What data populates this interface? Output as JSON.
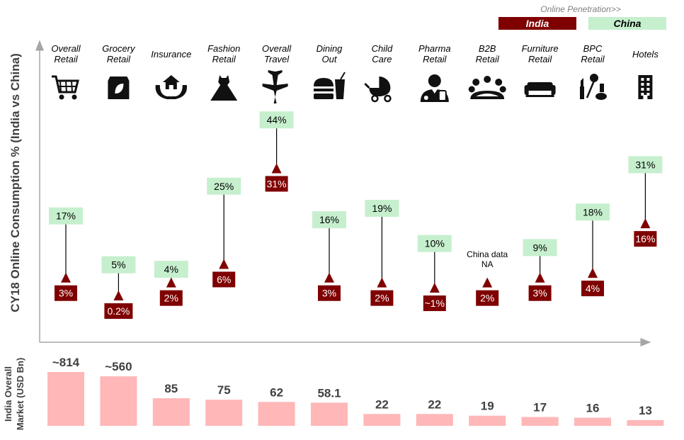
{
  "legend": {
    "title": "Online Penetration>>",
    "india_label": "India",
    "china_label": "China"
  },
  "axis_titles": {
    "y_top": "CY18 Online Consumption % (India vs China)",
    "y_bottom_line1": "India Overall",
    "y_bottom_line2": "Market (USD Bn)"
  },
  "colors": {
    "india": "#7f0000",
    "china": "#c6efce",
    "market_bar": "#ffb7b7",
    "axis": "#a6a6a6"
  },
  "chart_data": {
    "type": "dumbbell",
    "categories": [
      {
        "key": "overall-retail",
        "lines": [
          "Overall",
          "Retail"
        ],
        "icon": "shopping-cart-icon",
        "india": 3,
        "india_label": "3%",
        "china": 17,
        "china_label": "17%",
        "market": 814,
        "market_label": "~814"
      },
      {
        "key": "grocery-retail",
        "lines": [
          "Grocery",
          "Retail"
        ],
        "icon": "grocery-bag-icon",
        "india": 0.2,
        "india_label": "0.2%",
        "china": 5,
        "china_label": "5%",
        "market": 560,
        "market_label": "~560"
      },
      {
        "key": "insurance",
        "lines": [
          "Insurance"
        ],
        "icon": "insurance-icon",
        "india": 2,
        "india_label": "2%",
        "china": 4,
        "china_label": "4%",
        "market": 85,
        "market_label": "85"
      },
      {
        "key": "fashion-retail",
        "lines": [
          "Fashion",
          "Retail"
        ],
        "icon": "dress-icon",
        "india": 6,
        "india_label": "6%",
        "china": 25,
        "china_label": "25%",
        "market": 75,
        "market_label": "75"
      },
      {
        "key": "overall-travel",
        "lines": [
          "Overall",
          "Travel"
        ],
        "icon": "airplane-icon",
        "india": 31,
        "india_label": "31%",
        "china": 44,
        "china_label": "44%",
        "market": 62,
        "market_label": "62"
      },
      {
        "key": "dining-out",
        "lines": [
          "Dining",
          "Out"
        ],
        "icon": "fast-food-icon",
        "india": 3,
        "india_label": "3%",
        "china": 16,
        "china_label": "16%",
        "market": 58.1,
        "market_label": "58.1"
      },
      {
        "key": "child-care",
        "lines": [
          "Child",
          "Care"
        ],
        "icon": "baby-stroller-icon",
        "india": 2,
        "india_label": "2%",
        "china": 19,
        "china_label": "19%",
        "market": 22,
        "market_label": "22"
      },
      {
        "key": "pharma-retail",
        "lines": [
          "Pharma",
          "Retail"
        ],
        "icon": "pharmacist-icon",
        "india": 1,
        "india_label": "~1%",
        "china": 10,
        "china_label": "10%",
        "market": 22,
        "market_label": "22"
      },
      {
        "key": "b2b-retail",
        "lines": [
          "B2B",
          "Retail"
        ],
        "icon": "business-meeting-icon",
        "india": 2,
        "india_label": "2%",
        "china": null,
        "china_na_lines": [
          "China data",
          "NA"
        ],
        "market": 19,
        "market_label": "19"
      },
      {
        "key": "furniture-retail",
        "lines": [
          "Furniture",
          "Retail"
        ],
        "icon": "sofa-icon",
        "india": 3,
        "india_label": "3%",
        "china": 9,
        "china_label": "9%",
        "market": 17,
        "market_label": "17"
      },
      {
        "key": "bpc-retail",
        "lines": [
          "BPC",
          "Retail"
        ],
        "icon": "cosmetics-icon",
        "india": 4,
        "india_label": "4%",
        "china": 18,
        "china_label": "18%",
        "market": 16,
        "market_label": "16"
      },
      {
        "key": "hotels",
        "lines": [
          "Hotels"
        ],
        "icon": "hotel-building-icon",
        "india": 16,
        "india_label": "16%",
        "china": 31,
        "china_label": "31%",
        "market": 13,
        "market_label": "13"
      }
    ]
  }
}
